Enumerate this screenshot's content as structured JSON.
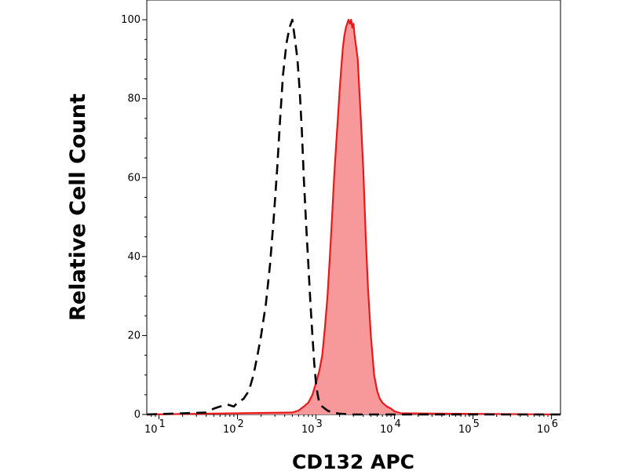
{
  "chart_data": {
    "type": "area",
    "title": "",
    "xlabel": "CD132 APC",
    "ylabel": "Relative Cell Count",
    "xscale": "log",
    "xlim": [
      7,
      1300000
    ],
    "ylim": [
      0,
      105
    ],
    "grid": false,
    "legend": "none",
    "x_ticks": [
      {
        "value": 10,
        "base": "10",
        "exp": "1"
      },
      {
        "value": 100,
        "base": "10",
        "exp": "2"
      },
      {
        "value": 1000,
        "base": "10",
        "exp": "3"
      },
      {
        "value": 10000,
        "base": "10",
        "exp": "4"
      },
      {
        "value": 100000,
        "base": "10",
        "exp": "5"
      },
      {
        "value": 1000000,
        "base": "10",
        "exp": "6"
      }
    ],
    "y_ticks": [
      {
        "value": 0,
        "label": "0"
      },
      {
        "value": 20,
        "label": "20"
      },
      {
        "value": 40,
        "label": "40"
      },
      {
        "value": 60,
        "label": "60"
      },
      {
        "value": 80,
        "label": "80"
      },
      {
        "value": 100,
        "label": "100"
      }
    ],
    "series": [
      {
        "style": "dashed",
        "color": "#000000",
        "x": [
          7,
          40,
          50,
          60,
          75,
          90,
          100,
          120,
          140,
          160,
          180,
          200,
          230,
          260,
          290,
          320,
          350,
          380,
          420,
          460,
          500,
          540,
          580,
          620,
          660,
          700,
          750,
          800,
          850,
          900,
          950,
          1000,
          1050,
          1100,
          1200,
          1300,
          1400,
          1600,
          2000,
          3000,
          1300000
        ],
        "y": [
          0,
          0.5,
          1.5,
          2,
          2.5,
          2,
          3,
          4,
          6,
          10,
          15,
          20,
          28,
          38,
          50,
          62,
          75,
          86,
          94,
          98,
          100,
          95,
          90,
          82,
          72,
          60,
          48,
          38,
          28,
          20,
          13,
          8,
          5,
          3,
          2,
          1.5,
          1,
          0.5,
          0.2,
          0,
          0
        ]
      },
      {
        "style": "filled",
        "color": "#e8191b",
        "fill": "#f7999a",
        "x": [
          7,
          500,
          600,
          700,
          800,
          900,
          1000,
          1100,
          1200,
          1300,
          1400,
          1500,
          1600,
          1700,
          1800,
          1900,
          2000,
          2100,
          2200,
          2300,
          2400,
          2500,
          2600,
          2700,
          2800,
          2900,
          3000,
          3100,
          3200,
          3300,
          3400,
          3500,
          3700,
          4000,
          4300,
          4600,
          5000,
          5500,
          6000,
          6500,
          7000,
          8000,
          9000,
          10000,
          12000,
          1300000
        ],
        "y": [
          0,
          0.5,
          1,
          2,
          3,
          5,
          8,
          11,
          15,
          22,
          30,
          40,
          50,
          60,
          68,
          75,
          82,
          88,
          93,
          96,
          98,
          99,
          100,
          99,
          100,
          98,
          99,
          96,
          94,
          92,
          90,
          85,
          76,
          62,
          45,
          32,
          20,
          10,
          6,
          4,
          3,
          2,
          1.5,
          0.8,
          0.3,
          0
        ]
      }
    ]
  }
}
